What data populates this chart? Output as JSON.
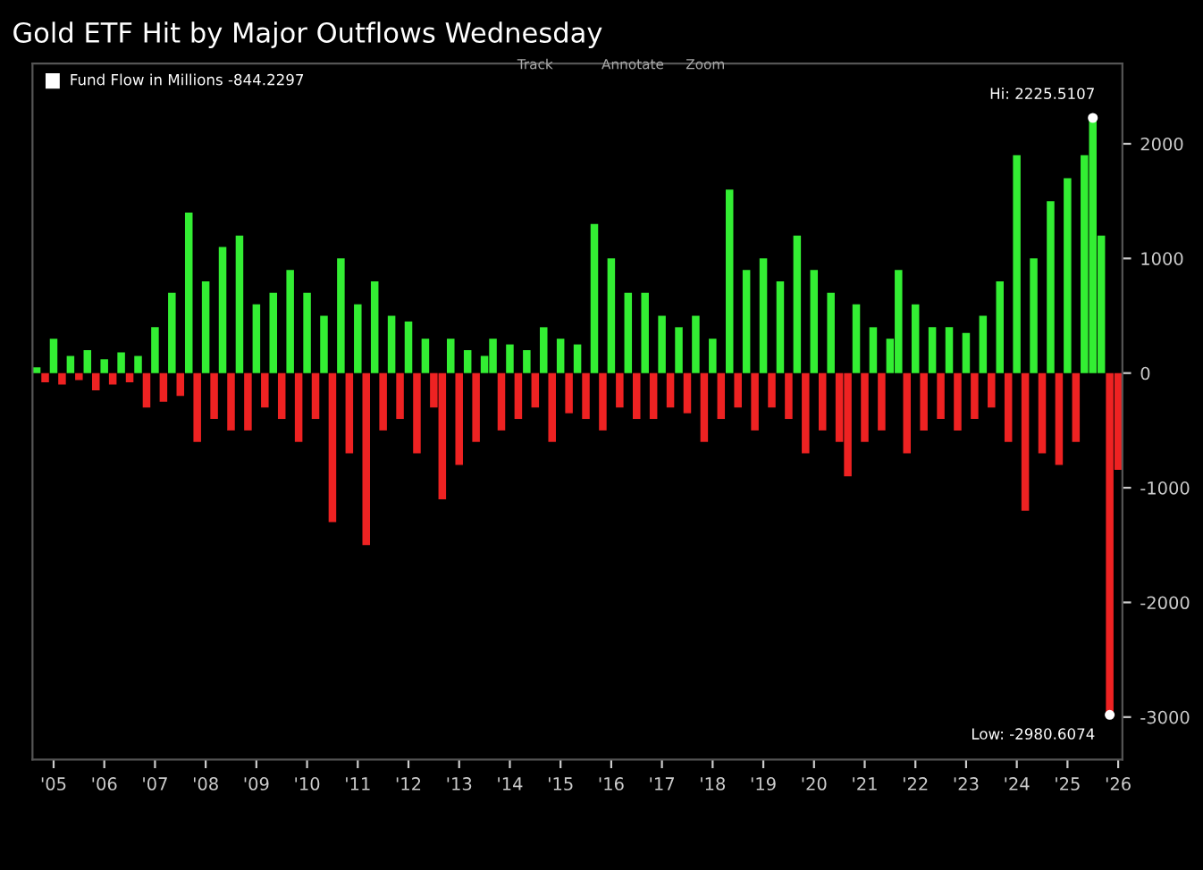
{
  "chart_data": {
    "type": "bar",
    "title": "Gold ETF Hit by Major Outflows Wednesday",
    "categories": [
      null,
      null,
      "'05",
      null,
      null,
      null,
      null,
      null,
      "'06",
      null,
      null,
      null,
      null,
      null,
      "'07",
      null,
      null,
      null,
      null,
      null,
      "'08",
      null,
      null,
      null,
      null,
      null,
      "'09",
      null,
      null,
      null,
      null,
      null,
      "'10",
      null,
      null,
      null,
      null,
      null,
      "'11",
      null,
      null,
      null,
      null,
      null,
      "'12",
      null,
      null,
      null,
      null,
      null,
      "'13",
      null,
      null,
      null,
      null,
      null,
      "'14",
      null,
      null,
      null,
      null,
      null,
      "'15",
      null,
      null,
      null,
      null,
      null,
      "'16",
      null,
      null,
      null,
      null,
      null,
      "'17",
      null,
      null,
      null,
      null,
      null,
      "'18",
      null,
      null,
      null,
      null,
      null,
      "'19",
      null,
      null,
      null,
      null,
      null,
      "'20",
      null,
      null,
      null,
      null,
      null,
      "'21",
      null,
      null,
      null,
      null,
      null,
      "'22",
      null,
      null,
      null,
      null,
      null,
      "'23",
      null,
      null,
      null,
      null,
      null,
      "'24",
      null,
      null,
      null,
      null,
      null,
      "'25",
      null,
      null,
      null,
      null,
      null,
      "'26"
    ],
    "series": [
      {
        "name": "Fund Flow in Millions -844.2297",
        "color": "#ffffff",
        "values": [
          50,
          -80,
          300,
          -100,
          150,
          -60,
          200,
          -150,
          120,
          -100,
          180,
          -80,
          150,
          -300,
          400,
          -250,
          700,
          -200,
          1400,
          -600,
          800,
          -400,
          1100,
          -500,
          1200,
          -500,
          600,
          -300,
          700,
          -400,
          900,
          -600,
          700,
          -400,
          500,
          -1300,
          1000,
          -700,
          600,
          -1500,
          800,
          -500,
          500,
          -400,
          450,
          -700,
          300,
          -300,
          -1100,
          300,
          -800,
          200,
          -600,
          150,
          300,
          -500,
          250,
          -400,
          200,
          -300,
          400,
          -600,
          300,
          -350,
          250,
          -400,
          1300,
          -500,
          1000,
          -300,
          700,
          -400,
          700,
          -400,
          500,
          -300,
          400,
          -350,
          500,
          -600,
          300,
          -400,
          1600,
          -300,
          900,
          -500,
          1000,
          -300,
          800,
          -400,
          1200,
          -700,
          900,
          -500,
          700,
          -600,
          -900,
          600,
          -600,
          400,
          -500,
          300,
          900,
          -700,
          600,
          -500,
          400,
          -400,
          400,
          -500,
          350,
          -400,
          500,
          -300,
          800,
          -600,
          1900,
          -1200,
          1000,
          -700,
          1500,
          -800,
          1700,
          -600,
          1900,
          2225.5107,
          1200,
          -2980.6074,
          -844.2297
        ],
        "colors": [
          "#33ee33",
          "#ee2222",
          "#33ee33",
          "#ee2222",
          "#33ee33",
          "#ee2222",
          "#33ee33",
          "#ee2222",
          "#33ee33",
          "#ee2222",
          "#33ee33",
          "#ee2222",
          "#33ee33",
          "#ee2222",
          "#33ee33",
          "#ee2222",
          "#33ee33",
          "#ee2222",
          "#33ee33",
          "#ee2222",
          "#33ee33",
          "#ee2222",
          "#33ee33",
          "#ee2222",
          "#33ee33",
          "#ee2222",
          "#33ee33",
          "#ee2222",
          "#33ee33",
          "#ee2222",
          "#33ee33",
          "#ee2222",
          "#33ee33",
          "#ee2222",
          "#33ee33",
          "#ee2222",
          "#33ee33",
          "#ee2222",
          "#33ee33",
          "#ee2222",
          "#33ee33",
          "#ee2222",
          "#33ee33",
          "#ee2222",
          "#33ee33",
          "#ee2222",
          "#33ee33",
          "#ee2222",
          "#ee2222",
          "#33ee33",
          "#ee2222",
          "#33ee33",
          "#ee2222",
          "#33ee33",
          "#33ee33",
          "#ee2222",
          "#33ee33",
          "#ee2222",
          "#33ee33",
          "#ee2222",
          "#33ee33",
          "#ee2222",
          "#33ee33",
          "#ee2222",
          "#33ee33",
          "#ee2222",
          "#33ee33",
          "#ee2222",
          "#33ee33",
          "#ee2222",
          "#33ee33",
          "#ee2222",
          "#33ee33",
          "#ee2222",
          "#33ee33",
          "#ee2222",
          "#33ee33",
          "#ee2222",
          "#33ee33",
          "#ee2222",
          "#33ee33",
          "#ee2222",
          "#33ee33",
          "#ee2222",
          "#33ee33",
          "#ee2222",
          "#33ee33",
          "#ee2222",
          "#33ee33",
          "#ee2222",
          "#33ee33",
          "#ee2222",
          "#33ee33",
          "#ee2222",
          "#33ee33",
          "#ee2222",
          "#ee2222",
          "#33ee33",
          "#ee2222",
          "#33ee33",
          "#ee2222",
          "#33ee33",
          "#33ee33",
          "#ee2222",
          "#33ee33",
          "#ee2222",
          "#33ee33",
          "#ee2222",
          "#33ee33",
          "#ee2222",
          "#33ee33",
          "#ee2222",
          "#33ee33",
          "#ee2222",
          "#33ee33",
          "#ee2222",
          "#33ee33",
          "#ee2222",
          "#33ee33",
          "#ee2222",
          "#33ee33",
          "#ee2222",
          "#33ee33",
          "#ee2222",
          "#33ee33",
          "#33ee33",
          "#33ee33",
          "#ee2222",
          "#ee2222"
        ]
      }
    ],
    "ylim": [
      -3370,
      2700
    ],
    "yticks": [
      -3000,
      -2000,
      -1000,
      0,
      1000,
      2000
    ],
    "legend": "top left",
    "annotations": [
      "Hi: 2225.5107",
      "Low: -2980.6074",
      "Track",
      "Annotate",
      "Zoom"
    ]
  }
}
